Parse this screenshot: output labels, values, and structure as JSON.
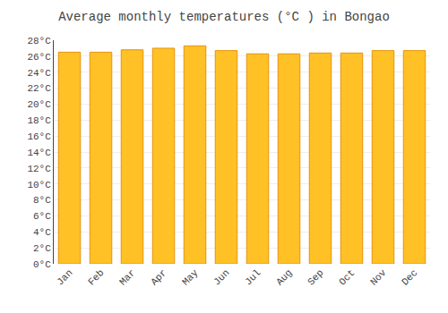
{
  "chart_data": {
    "type": "bar",
    "title": "Average monthly temperatures (°C ) in Bongao",
    "categories": [
      "Jan",
      "Feb",
      "Mar",
      "Apr",
      "May",
      "Jun",
      "Jul",
      "Aug",
      "Sep",
      "Oct",
      "Nov",
      "Dec"
    ],
    "values": [
      26.5,
      26.5,
      26.8,
      27.0,
      27.3,
      26.7,
      26.3,
      26.3,
      26.4,
      26.4,
      26.7,
      26.7
    ],
    "color": "#FFC125",
    "ylim": [
      0,
      28
    ],
    "yticks": [
      {
        "value": 0,
        "label": "0°C"
      },
      {
        "value": 2,
        "label": "2°C"
      },
      {
        "value": 4,
        "label": "4°C"
      },
      {
        "value": 6,
        "label": "6°C"
      },
      {
        "value": 8,
        "label": "8°C"
      },
      {
        "value": 10,
        "label": "10°C"
      },
      {
        "value": 12,
        "label": "12°C"
      },
      {
        "value": 14,
        "label": "14°C"
      },
      {
        "value": 16,
        "label": "16°C"
      },
      {
        "value": 18,
        "label": "18°C"
      },
      {
        "value": 20,
        "label": "20°C"
      },
      {
        "value": 22,
        "label": "22°C"
      },
      {
        "value": 24,
        "label": "24°C"
      },
      {
        "value": 26,
        "label": "26°C"
      },
      {
        "value": 28,
        "label": "28°C"
      }
    ],
    "grid": true
  }
}
